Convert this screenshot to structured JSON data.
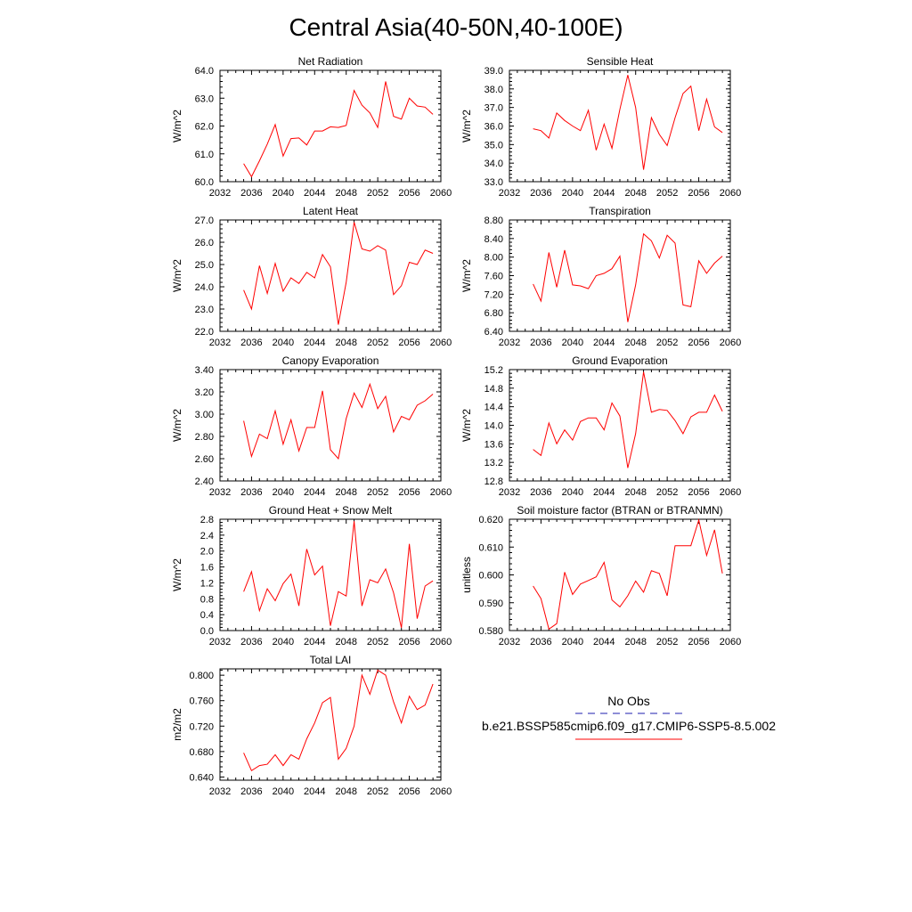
{
  "figure": {
    "title": "Central Asia(40-50N,40-100E)"
  },
  "legend": {
    "obs_label": "No Obs",
    "obs_color": "#4b4bbf",
    "model_label": "b.e21.BSSP585cmip6.f09_g17.CMIP6-SSP5-8.5.002",
    "model_color": "#ff0000"
  },
  "chart_data": [
    {
      "type": "line",
      "title": "Net Radiation",
      "ylabel": "W/m^2",
      "xlim": [
        2032,
        2060
      ],
      "xticks": [
        2032,
        2036,
        2040,
        2044,
        2048,
        2052,
        2056,
        2060
      ],
      "ylim": [
        60.0,
        64.0
      ],
      "yticks": [
        "60.0",
        "61.0",
        "62.0",
        "63.0",
        "64.0"
      ],
      "series": [
        {
          "color": "#ff0000",
          "x": [
            2035,
            2036,
            2037,
            2038,
            2039,
            2040,
            2041,
            2042,
            2043,
            2044,
            2045,
            2046,
            2047,
            2048,
            2049,
            2050,
            2051,
            2052,
            2053,
            2054,
            2055,
            2056,
            2057,
            2058,
            2059
          ],
          "values": [
            60.65,
            60.18,
            60.75,
            61.35,
            62.05,
            60.92,
            61.55,
            61.57,
            61.32,
            61.82,
            61.82,
            61.97,
            61.95,
            62.02,
            63.28,
            62.75,
            62.47,
            61.95,
            63.6,
            62.35,
            62.25,
            63.0,
            62.72,
            62.68,
            62.42
          ]
        }
      ]
    },
    {
      "type": "line",
      "title": "Sensible Heat",
      "ylabel": "W/m^2",
      "xlim": [
        2032,
        2060
      ],
      "xticks": [
        2032,
        2036,
        2040,
        2044,
        2048,
        2052,
        2056,
        2060
      ],
      "ylim": [
        33.0,
        39.0
      ],
      "yticks": [
        "33.0",
        "34.0",
        "35.0",
        "36.0",
        "37.0",
        "38.0",
        "39.0"
      ],
      "series": [
        {
          "color": "#ff0000",
          "x": [
            2035,
            2036,
            2037,
            2038,
            2039,
            2040,
            2041,
            2042,
            2043,
            2044,
            2045,
            2046,
            2047,
            2048,
            2049,
            2050,
            2051,
            2052,
            2053,
            2054,
            2055,
            2056,
            2057,
            2058,
            2059
          ],
          "values": [
            35.85,
            35.75,
            35.35,
            36.7,
            36.3,
            36.0,
            35.75,
            36.85,
            34.7,
            36.1,
            34.8,
            36.9,
            38.75,
            37.0,
            33.65,
            36.45,
            35.55,
            34.95,
            36.45,
            37.75,
            38.15,
            35.75,
            37.45,
            35.95,
            35.65
          ]
        }
      ]
    },
    {
      "type": "line",
      "title": "Latent Heat",
      "ylabel": "W/m^2",
      "xlim": [
        2032,
        2060
      ],
      "xticks": [
        2032,
        2036,
        2040,
        2044,
        2048,
        2052,
        2056,
        2060
      ],
      "ylim": [
        22.0,
        27.0
      ],
      "yticks": [
        "22.0",
        "23.0",
        "24.0",
        "25.0",
        "26.0",
        "27.0"
      ],
      "series": [
        {
          "color": "#ff0000",
          "x": [
            2035,
            2036,
            2037,
            2038,
            2039,
            2040,
            2041,
            2042,
            2043,
            2044,
            2045,
            2046,
            2047,
            2048,
            2049,
            2050,
            2051,
            2052,
            2053,
            2054,
            2055,
            2056,
            2057,
            2058,
            2059
          ],
          "values": [
            23.85,
            23.0,
            24.95,
            23.7,
            25.05,
            23.8,
            24.4,
            24.15,
            24.65,
            24.4,
            25.45,
            24.9,
            22.3,
            24.2,
            26.9,
            25.7,
            25.6,
            25.85,
            25.65,
            23.65,
            24.05,
            25.1,
            25.0,
            25.65,
            25.5
          ]
        }
      ]
    },
    {
      "type": "line",
      "title": "Transpiration",
      "ylabel": "W/m^2",
      "xlim": [
        2032,
        2060
      ],
      "xticks": [
        2032,
        2036,
        2040,
        2044,
        2048,
        2052,
        2056,
        2060
      ],
      "ylim": [
        6.4,
        8.8
      ],
      "yticks": [
        "6.40",
        "6.80",
        "7.20",
        "7.60",
        "8.00",
        "8.40",
        "8.80"
      ],
      "series": [
        {
          "color": "#ff0000",
          "x": [
            2035,
            2036,
            2037,
            2038,
            2039,
            2040,
            2041,
            2042,
            2043,
            2044,
            2045,
            2046,
            2047,
            2048,
            2049,
            2050,
            2051,
            2052,
            2053,
            2054,
            2055,
            2056,
            2057,
            2058,
            2059
          ],
          "values": [
            7.42,
            7.05,
            8.1,
            7.35,
            8.15,
            7.4,
            7.38,
            7.32,
            7.6,
            7.65,
            7.75,
            8.02,
            6.6,
            7.4,
            8.5,
            8.35,
            7.98,
            8.47,
            8.3,
            6.97,
            6.93,
            7.92,
            7.65,
            7.87,
            8.02
          ]
        }
      ]
    },
    {
      "type": "line",
      "title": "Canopy Evaporation",
      "ylabel": "W/m^2",
      "xlim": [
        2032,
        2060
      ],
      "xticks": [
        2032,
        2036,
        2040,
        2044,
        2048,
        2052,
        2056,
        2060
      ],
      "ylim": [
        2.4,
        3.4
      ],
      "yticks": [
        "2.40",
        "2.60",
        "2.80",
        "3.00",
        "3.20",
        "3.40"
      ],
      "series": [
        {
          "color": "#ff0000",
          "x": [
            2035,
            2036,
            2037,
            2038,
            2039,
            2040,
            2041,
            2042,
            2043,
            2044,
            2045,
            2046,
            2047,
            2048,
            2049,
            2050,
            2051,
            2052,
            2053,
            2054,
            2055,
            2056,
            2057,
            2058,
            2059
          ],
          "values": [
            2.94,
            2.62,
            2.82,
            2.78,
            3.03,
            2.73,
            2.95,
            2.67,
            2.88,
            2.88,
            3.21,
            2.68,
            2.6,
            2.96,
            3.19,
            3.06,
            3.27,
            3.05,
            3.16,
            2.84,
            2.98,
            2.95,
            3.08,
            3.12,
            3.18
          ]
        }
      ]
    },
    {
      "type": "line",
      "title": "Ground Evaporation",
      "ylabel": "W/m^2",
      "xlim": [
        2032,
        2060
      ],
      "xticks": [
        2032,
        2036,
        2040,
        2044,
        2048,
        2052,
        2056,
        2060
      ],
      "ylim": [
        12.8,
        15.2
      ],
      "yticks": [
        "12.8",
        "13.2",
        "13.6",
        "14.0",
        "14.4",
        "14.8",
        "15.2"
      ],
      "series": [
        {
          "color": "#ff0000",
          "x": [
            2035,
            2036,
            2037,
            2038,
            2039,
            2040,
            2041,
            2042,
            2043,
            2044,
            2045,
            2046,
            2047,
            2048,
            2049,
            2050,
            2051,
            2052,
            2053,
            2054,
            2055,
            2056,
            2057,
            2058,
            2059
          ],
          "values": [
            13.48,
            13.35,
            14.05,
            13.6,
            13.9,
            13.68,
            14.08,
            14.16,
            14.16,
            13.9,
            14.48,
            14.2,
            13.08,
            13.82,
            15.15,
            14.28,
            14.34,
            14.32,
            14.1,
            13.82,
            14.18,
            14.28,
            14.28,
            14.65,
            14.3
          ]
        }
      ]
    },
    {
      "type": "line",
      "title": "Ground Heat + Snow Melt",
      "ylabel": "W/m^2",
      "xlim": [
        2032,
        2060
      ],
      "xticks": [
        2032,
        2036,
        2040,
        2044,
        2048,
        2052,
        2056,
        2060
      ],
      "ylim": [
        0.0,
        2.8
      ],
      "yticks": [
        "0.0",
        "0.4",
        "0.8",
        "1.2",
        "1.6",
        "2.0",
        "2.4",
        "2.8"
      ],
      "series": [
        {
          "color": "#ff0000",
          "x": [
            2035,
            2036,
            2037,
            2038,
            2039,
            2040,
            2041,
            2042,
            2043,
            2044,
            2045,
            2046,
            2047,
            2048,
            2049,
            2050,
            2051,
            2052,
            2053,
            2054,
            2055,
            2056,
            2057,
            2058,
            2059
          ],
          "values": [
            0.98,
            1.48,
            0.5,
            1.05,
            0.75,
            1.18,
            1.42,
            0.62,
            2.05,
            1.4,
            1.62,
            0.12,
            0.98,
            0.87,
            2.75,
            0.62,
            1.28,
            1.2,
            1.55,
            0.95,
            0.07,
            2.18,
            0.3,
            1.12,
            1.25
          ]
        }
      ]
    },
    {
      "type": "line",
      "title": "Soil moisture factor (BTRAN or BTRANMN)",
      "ylabel": "unitless",
      "xlim": [
        2032,
        2060
      ],
      "xticks": [
        2032,
        2036,
        2040,
        2044,
        2048,
        2052,
        2056,
        2060
      ],
      "ylim": [
        0.58,
        0.62
      ],
      "yticks": [
        "0.580",
        "0.590",
        "0.600",
        "0.610",
        "0.620"
      ],
      "series": [
        {
          "color": "#ff0000",
          "x": [
            2035,
            2036,
            2037,
            2038,
            2039,
            2040,
            2041,
            2042,
            2043,
            2044,
            2045,
            2046,
            2047,
            2048,
            2049,
            2050,
            2051,
            2052,
            2053,
            2054,
            2055,
            2056,
            2057,
            2058,
            2059
          ],
          "values": [
            0.596,
            0.5915,
            0.5805,
            0.5825,
            0.601,
            0.593,
            0.5967,
            0.598,
            0.5993,
            0.6045,
            0.591,
            0.5885,
            0.5925,
            0.5978,
            0.5938,
            0.6015,
            0.6005,
            0.5925,
            0.6105,
            0.6105,
            0.6105,
            0.6197,
            0.607,
            0.6162,
            0.6005
          ]
        }
      ]
    },
    {
      "type": "line",
      "title": "Total LAI",
      "ylabel": "m2/m2",
      "xlim": [
        2032,
        2060
      ],
      "xticks": [
        2032,
        2036,
        2040,
        2044,
        2048,
        2052,
        2056,
        2060
      ],
      "ylim": [
        0.635,
        0.81
      ],
      "yticks": [
        "0.640",
        "0.680",
        "0.720",
        "0.760",
        "0.800"
      ],
      "series": [
        {
          "color": "#ff0000",
          "x": [
            2035,
            2036,
            2037,
            2038,
            2039,
            2040,
            2041,
            2042,
            2043,
            2044,
            2045,
            2046,
            2047,
            2048,
            2049,
            2050,
            2051,
            2052,
            2053,
            2054,
            2055,
            2056,
            2057,
            2058,
            2059
          ],
          "values": [
            0.678,
            0.65,
            0.658,
            0.66,
            0.675,
            0.658,
            0.675,
            0.668,
            0.7,
            0.725,
            0.757,
            0.765,
            0.668,
            0.685,
            0.72,
            0.8,
            0.77,
            0.808,
            0.8,
            0.758,
            0.725,
            0.767,
            0.746,
            0.753,
            0.786
          ]
        }
      ]
    }
  ]
}
